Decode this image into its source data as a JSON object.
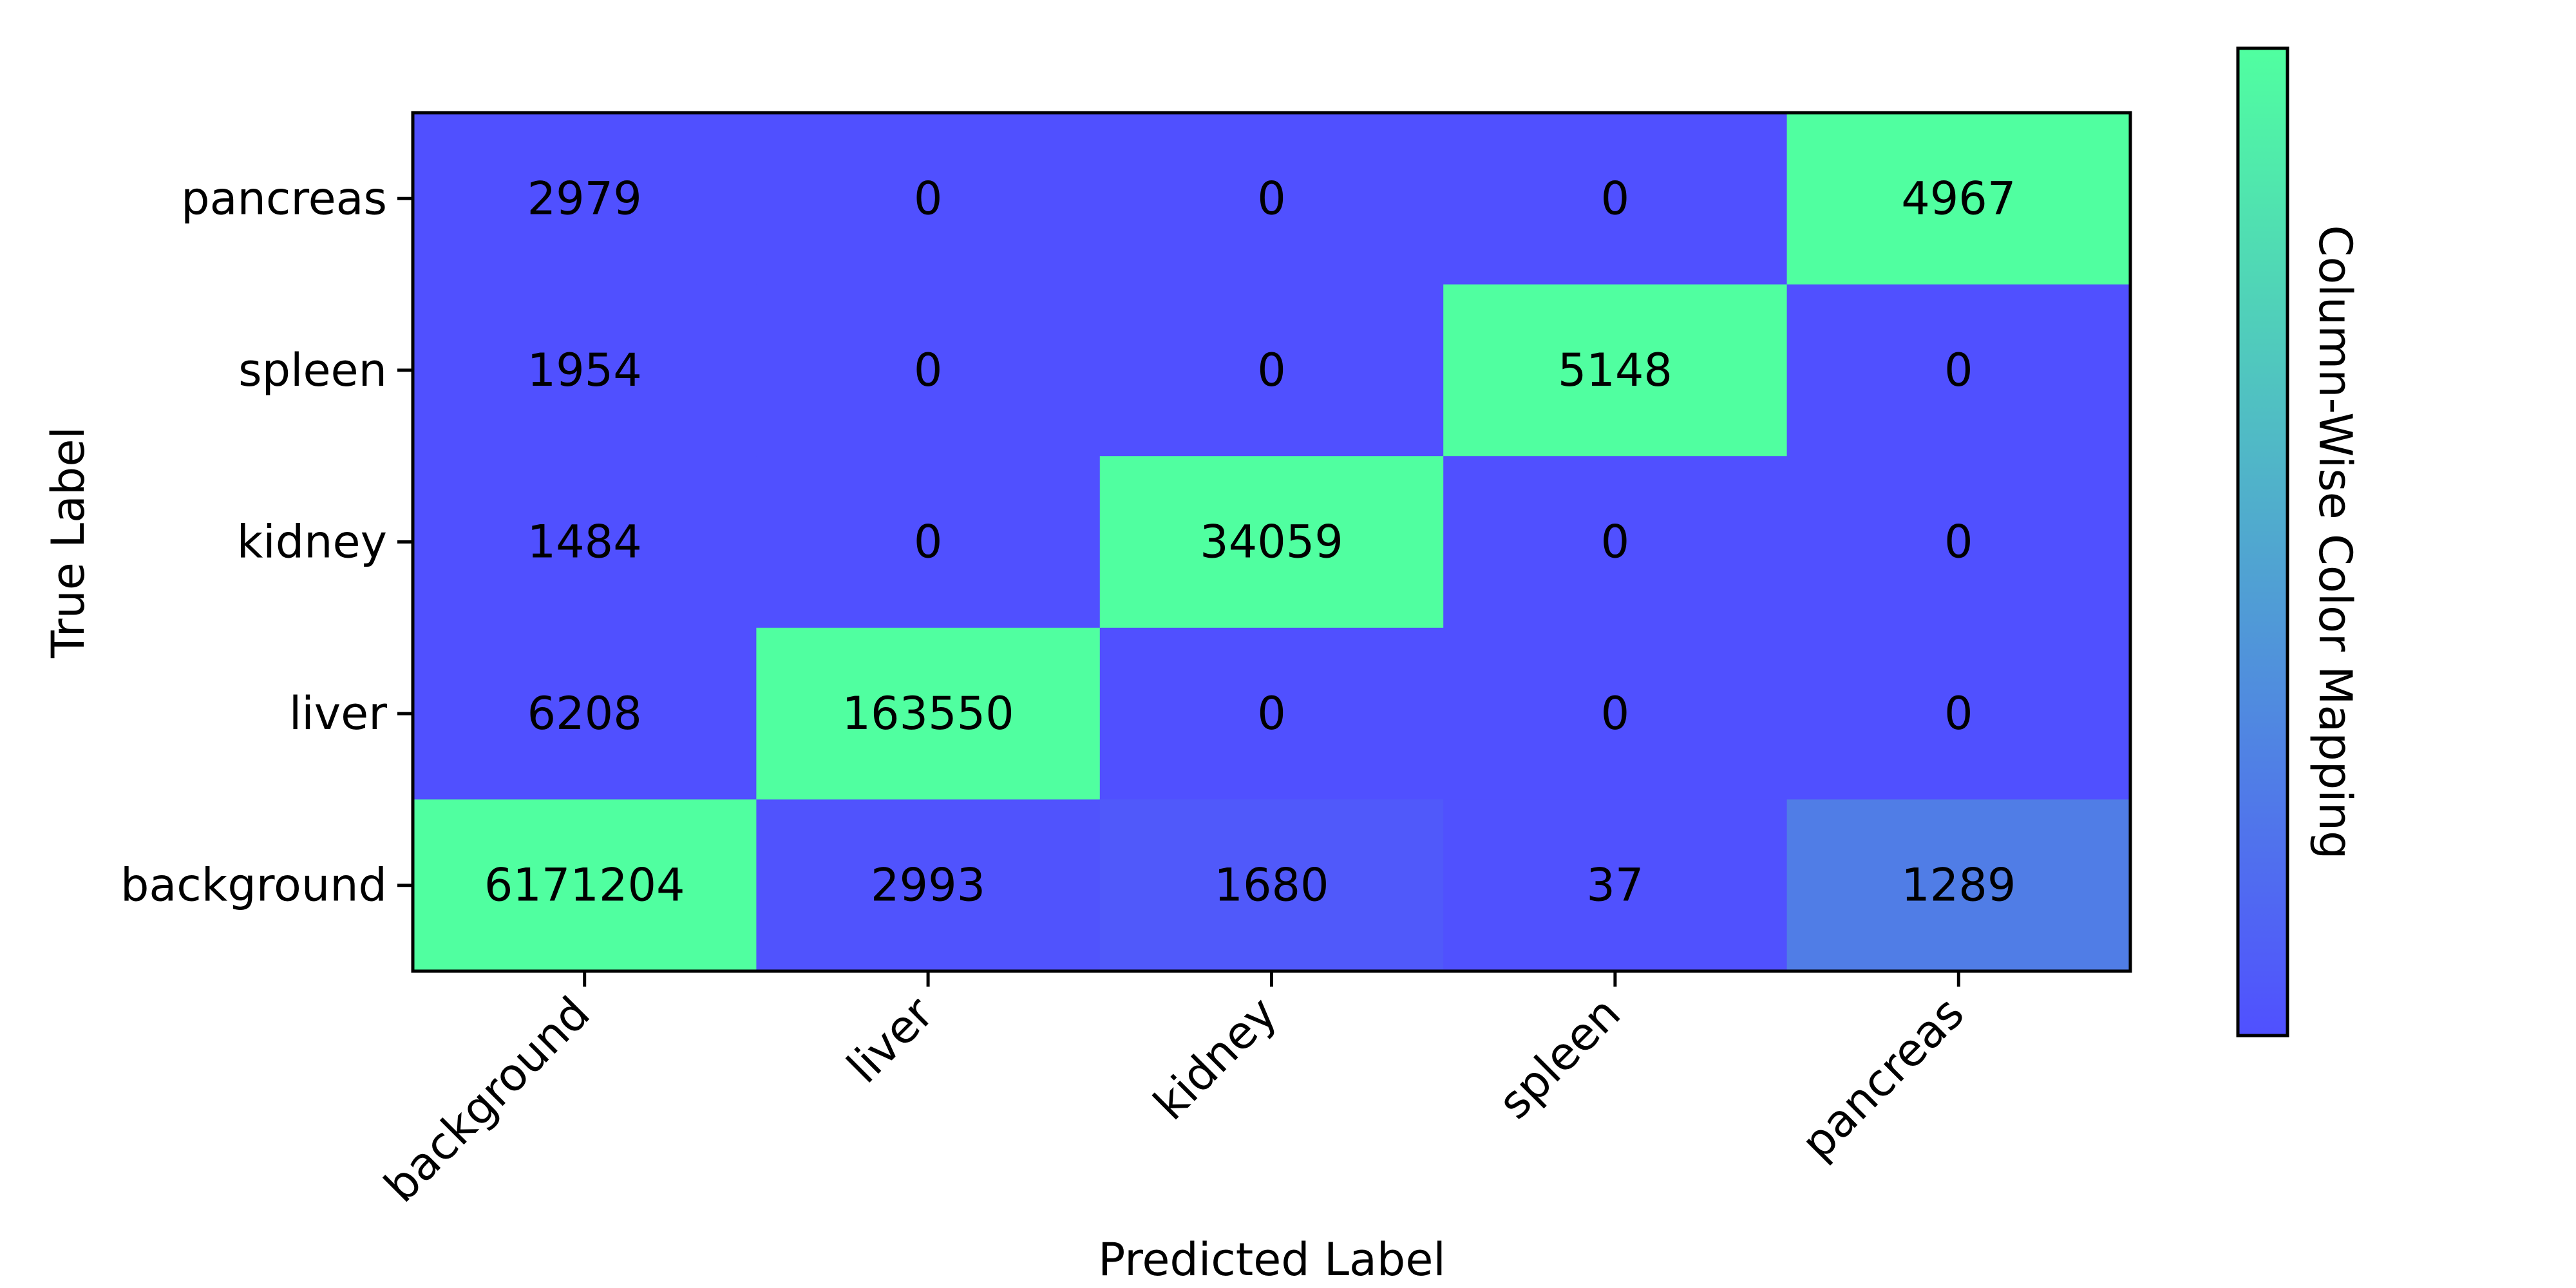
{
  "chart_data": {
    "type": "heatmap",
    "title": "",
    "xlabel": "Predicted Label",
    "ylabel": "True Label",
    "x_categories": [
      "background",
      "liver",
      "kidney",
      "spleen",
      "pancreas"
    ],
    "y_categories_top_to_bottom": [
      "pancreas",
      "spleen",
      "kidney",
      "liver",
      "background"
    ],
    "values": [
      [
        2979,
        0,
        0,
        0,
        4967
      ],
      [
        1954,
        0,
        0,
        5148,
        0
      ],
      [
        1484,
        0,
        34059,
        0,
        0
      ],
      [
        6208,
        163550,
        0,
        0,
        0
      ],
      [
        6171204,
        2993,
        1680,
        37,
        1289
      ]
    ],
    "colorbar": {
      "label": "Column-Wise Color Mapping",
      "low_color": "#5050ff",
      "high_color": "#50ffa0",
      "ticks": false
    },
    "color_normalization": "column-wise"
  }
}
